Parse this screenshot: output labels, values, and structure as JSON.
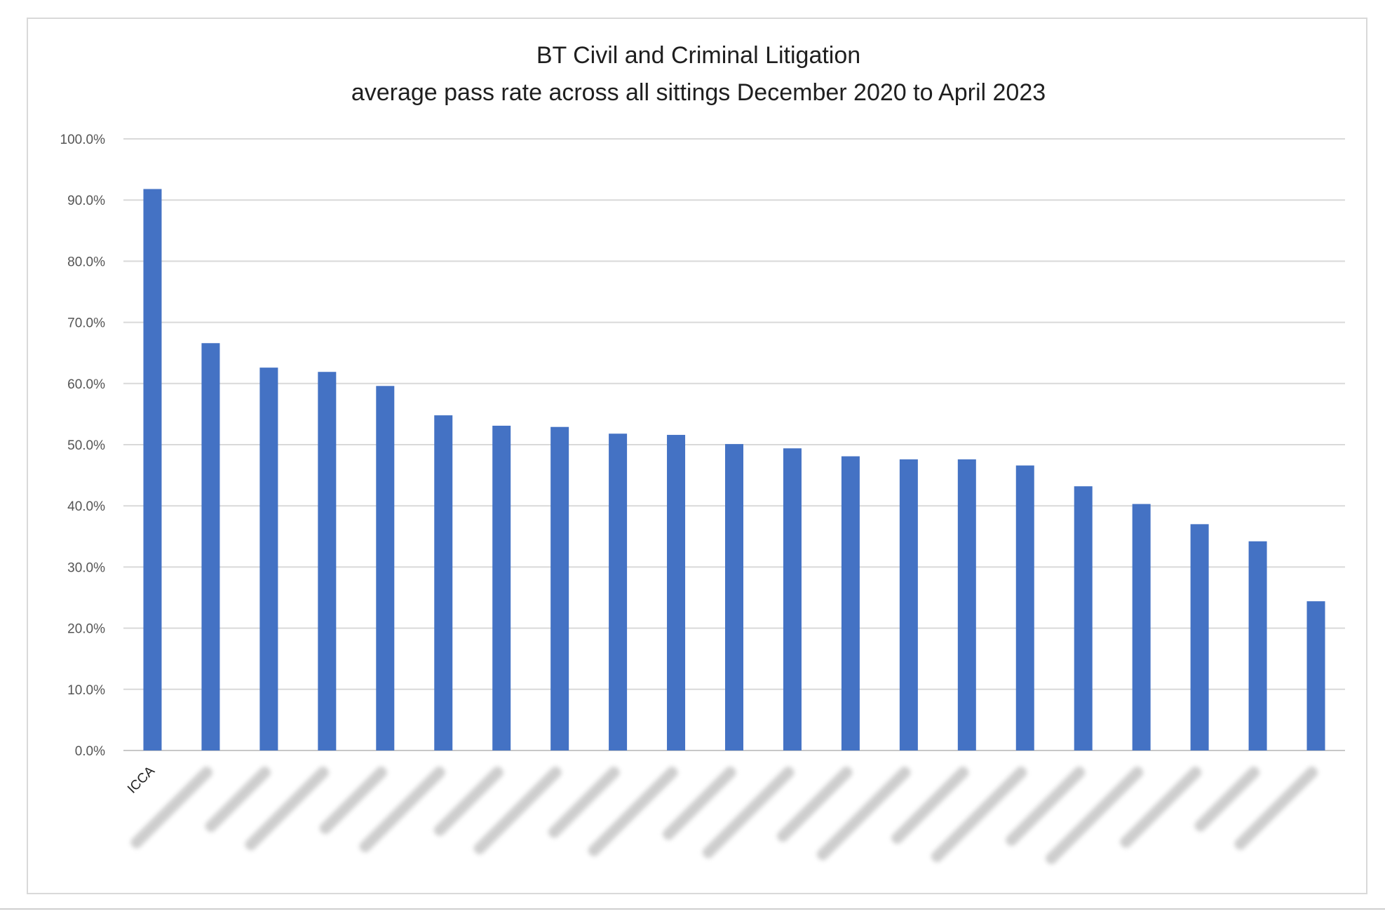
{
  "colors": {
    "bar": "#4472c4",
    "grid": "#d9d9d9",
    "frame": "#d9d9d9"
  },
  "chart_data": {
    "type": "bar",
    "title": "BT Civil and Criminal Litigation",
    "subtitle": "average pass rate across all sittings December 2020 to April 2023",
    "xlabel": "",
    "ylabel": "",
    "ylim": [
      0,
      100
    ],
    "yticks": [
      "0.0%",
      "10.0%",
      "20.0%",
      "30.0%",
      "40.0%",
      "50.0%",
      "60.0%",
      "70.0%",
      "80.0%",
      "90.0%",
      "100.0%"
    ],
    "grid": true,
    "legend": "none",
    "categories": [
      "ICCA",
      "",
      "",
      "",
      "",
      "",
      "",
      "",
      "",
      "",
      "",
      "",
      "",
      "",
      "",
      "",
      "",
      "",
      "",
      "",
      ""
    ],
    "category_blurred": [
      false,
      true,
      true,
      true,
      true,
      true,
      true,
      true,
      true,
      true,
      true,
      true,
      true,
      true,
      true,
      true,
      true,
      true,
      true,
      true,
      true
    ],
    "values": [
      91.8,
      66.6,
      62.6,
      61.9,
      59.6,
      54.8,
      53.1,
      52.9,
      51.8,
      51.6,
      50.1,
      49.4,
      48.1,
      47.6,
      47.6,
      46.6,
      43.2,
      40.3,
      37.0,
      34.2,
      24.4
    ]
  }
}
